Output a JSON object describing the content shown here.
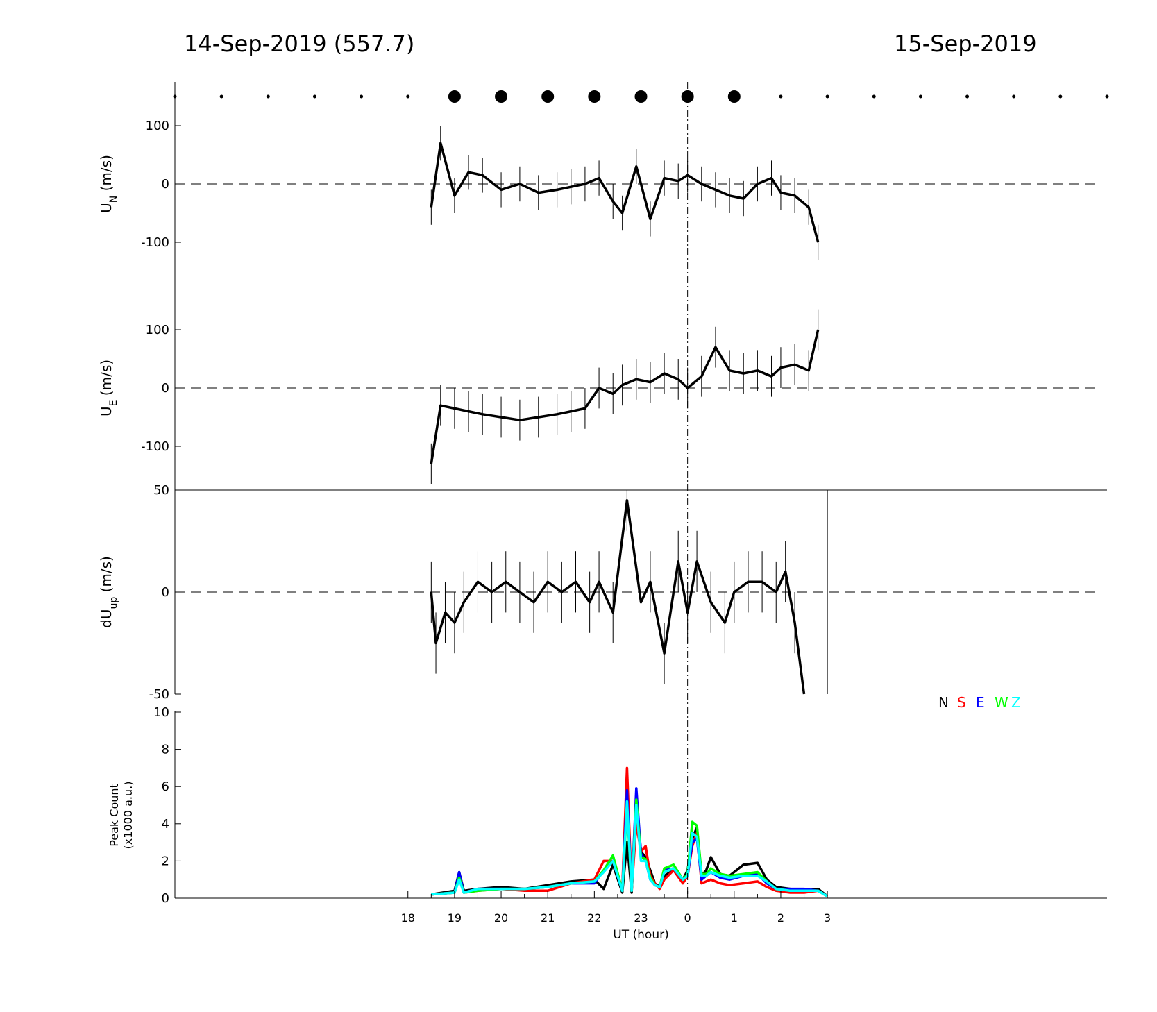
{
  "titles": {
    "left": "14-Sep-2019 (557.7)",
    "right": "15-Sep-2019"
  },
  "chart_data": [
    {
      "type": "line",
      "panel": "un",
      "ylabel_main": "U",
      "ylabel_sub": "N",
      "ylabel_unit": " (m/s)",
      "ylim": [
        -175,
        175
      ],
      "yticks": [
        -100,
        0,
        100
      ],
      "tick_labels": [
        "-100",
        "0",
        "100"
      ],
      "x_unit": "UT hour relative to 00 UT 15-Sep-2019",
      "x": [
        -5.5,
        -5.3,
        -5.0,
        -4.7,
        -4.4,
        -4.0,
        -3.6,
        -3.2,
        -2.8,
        -2.5,
        -2.2,
        -1.9,
        -1.6,
        -1.4,
        -1.1,
        -0.8,
        -0.5,
        -0.2,
        0.0,
        0.3,
        0.6,
        0.9,
        1.2,
        1.5,
        1.8,
        2.0,
        2.3,
        2.6,
        2.8
      ],
      "y": [
        -40,
        70,
        -20,
        20,
        15,
        -10,
        0,
        -15,
        -10,
        -5,
        0,
        10,
        -30,
        -50,
        30,
        -60,
        10,
        5,
        15,
        0,
        -10,
        -20,
        -25,
        0,
        10,
        -15,
        -20,
        -40,
        -100
      ],
      "error_bar": 30,
      "zero_line": true,
      "markers": {
        "x": [
          -11,
          -10,
          -9,
          -8,
          -7,
          -6,
          -5,
          -4,
          -3,
          -2,
          -1,
          0,
          1,
          2,
          3,
          4,
          5,
          6,
          7,
          8,
          9
        ],
        "large": [
          -5,
          -4,
          -3,
          -2,
          -1,
          0,
          1
        ]
      }
    },
    {
      "type": "line",
      "panel": "ue",
      "ylabel_main": "U",
      "ylabel_sub": "E",
      "ylabel_unit": " (m/s)",
      "ylim": [
        -175,
        175
      ],
      "yticks": [
        -100,
        0,
        100
      ],
      "tick_labels": [
        "-100",
        "0",
        "100"
      ],
      "x": [
        -5.5,
        -5.3,
        -5.0,
        -4.7,
        -4.4,
        -4.0,
        -3.6,
        -3.2,
        -2.8,
        -2.5,
        -2.2,
        -1.9,
        -1.6,
        -1.4,
        -1.1,
        -0.8,
        -0.5,
        -0.2,
        0.0,
        0.3,
        0.6,
        0.9,
        1.2,
        1.5,
        1.8,
        2.0,
        2.3,
        2.6,
        2.8
      ],
      "y": [
        -130,
        -30,
        -35,
        -40,
        -45,
        -50,
        -55,
        -50,
        -45,
        -40,
        -35,
        0,
        -10,
        5,
        15,
        10,
        25,
        15,
        0,
        20,
        70,
        30,
        25,
        30,
        20,
        35,
        40,
        30,
        100
      ],
      "error_bar": 35,
      "zero_line": true
    },
    {
      "type": "line",
      "panel": "duup",
      "ylabel_main": "dU",
      "ylabel_sub": "up",
      "ylabel_unit": " (m/s)",
      "ylim": [
        -50,
        50
      ],
      "yticks": [
        -50,
        0,
        50
      ],
      "tick_labels": [
        "-50",
        "0",
        "50"
      ],
      "x": [
        -5.5,
        -5.4,
        -5.2,
        -5.0,
        -4.8,
        -4.5,
        -4.2,
        -3.9,
        -3.6,
        -3.3,
        -3.0,
        -2.7,
        -2.4,
        -2.1,
        -1.9,
        -1.6,
        -1.3,
        -1.0,
        -0.8,
        -0.5,
        -0.2,
        0.0,
        0.2,
        0.5,
        0.8,
        1.0,
        1.3,
        1.6,
        1.9,
        2.1,
        2.3,
        2.5
      ],
      "y": [
        0,
        -25,
        -10,
        -15,
        -5,
        5,
        0,
        5,
        0,
        -5,
        5,
        0,
        5,
        -5,
        5,
        -10,
        45,
        -5,
        5,
        -30,
        15,
        -10,
        15,
        -5,
        -15,
        0,
        5,
        5,
        0,
        10,
        -15,
        -50
      ],
      "error_bar": 15,
      "zero_line": true,
      "vertical_line_x": 3.0
    },
    {
      "type": "line",
      "panel": "peak",
      "ylabel_line1": "Peak Count",
      "ylabel_line2": "(x1000 a.u.)",
      "ylim": [
        0,
        10
      ],
      "yticks": [
        0,
        2,
        4,
        6,
        8,
        10
      ],
      "tick_labels": [
        "0",
        "2",
        "4",
        "6",
        "8",
        "10"
      ],
      "x": [
        -5.5,
        -5.0,
        -4.9,
        -4.8,
        -4.5,
        -4.0,
        -3.5,
        -3.0,
        -2.5,
        -2.0,
        -1.8,
        -1.6,
        -1.4,
        -1.3,
        -1.2,
        -1.1,
        -1.0,
        -0.9,
        -0.8,
        -0.7,
        -0.6,
        -0.5,
        -0.3,
        -0.1,
        0.0,
        0.1,
        0.2,
        0.3,
        0.4,
        0.5,
        0.7,
        0.9,
        1.2,
        1.5,
        1.7,
        1.9,
        2.2,
        2.5,
        2.8,
        3.0
      ],
      "series": [
        {
          "name": "N",
          "color": "#000000",
          "values": [
            0.2,
            0.4,
            1.4,
            0.4,
            0.5,
            0.6,
            0.5,
            0.7,
            0.9,
            1.0,
            0.5,
            1.8,
            0.3,
            3.0,
            0.3,
            5.0,
            2.5,
            2.2,
            1.5,
            0.8,
            0.6,
            1.2,
            1.5,
            1.0,
            1.5,
            3.2,
            3.8,
            1.2,
            1.5,
            2.2,
            1.3,
            1.2,
            1.8,
            1.9,
            1.0,
            0.6,
            0.5,
            0.4,
            0.5,
            0.1
          ]
        },
        {
          "name": "S",
          "color": "#ff0000",
          "values": [
            0.2,
            0.3,
            1.2,
            0.3,
            0.4,
            0.5,
            0.4,
            0.4,
            0.8,
            1.0,
            2.0,
            2.0,
            0.5,
            7.0,
            0.4,
            4.0,
            2.5,
            2.8,
            1.2,
            0.8,
            0.5,
            1.0,
            1.5,
            0.8,
            1.2,
            2.8,
            3.5,
            0.8,
            0.9,
            1.0,
            0.8,
            0.7,
            0.8,
            0.9,
            0.6,
            0.4,
            0.3,
            0.3,
            0.4,
            0.1
          ]
        },
        {
          "name": "E",
          "color": "#0000ff",
          "values": [
            0.2,
            0.3,
            1.4,
            0.3,
            0.5,
            0.5,
            0.5,
            0.6,
            0.8,
            0.8,
            1.5,
            2.0,
            0.4,
            5.8,
            0.4,
            5.9,
            2.4,
            2.0,
            1.0,
            0.7,
            0.6,
            1.5,
            1.6,
            1.0,
            1.2,
            3.0,
            3.2,
            1.0,
            1.2,
            1.4,
            1.1,
            1.0,
            1.2,
            1.3,
            0.8,
            0.5,
            0.5,
            0.5,
            0.4,
            0.1
          ]
        },
        {
          "name": "W",
          "color": "#00ff00",
          "values": [
            0.2,
            0.3,
            1.1,
            0.3,
            0.4,
            0.5,
            0.5,
            0.6,
            0.8,
            0.9,
            1.5,
            2.3,
            0.4,
            5.0,
            0.4,
            5.3,
            2.2,
            2.1,
            1.1,
            0.7,
            0.6,
            1.6,
            1.8,
            1.0,
            1.3,
            4.1,
            3.9,
            1.3,
            1.3,
            1.6,
            1.3,
            1.2,
            1.3,
            1.4,
            0.9,
            0.5,
            0.4,
            0.4,
            0.4,
            0.1
          ]
        },
        {
          "name": "Z",
          "color": "#00ffff",
          "values": [
            0.2,
            0.3,
            1.0,
            0.3,
            0.5,
            0.5,
            0.5,
            0.6,
            0.8,
            0.9,
            1.4,
            2.0,
            0.4,
            5.2,
            0.4,
            5.0,
            2.0,
            2.0,
            1.0,
            0.7,
            0.6,
            1.4,
            1.6,
            1.0,
            1.2,
            3.5,
            3.3,
            1.2,
            1.2,
            1.4,
            1.2,
            1.1,
            1.2,
            1.2,
            0.9,
            0.5,
            0.4,
            0.4,
            0.4,
            0.1
          ]
        }
      ],
      "legend": [
        "N",
        "S",
        "E",
        "W",
        "Z"
      ],
      "legend_location": "top-right"
    }
  ],
  "x_axis": {
    "label": "UT (hour)",
    "range": [
      -11,
      9
    ],
    "tick_values": [
      -6,
      -5,
      -4,
      -3,
      -2,
      -1,
      0,
      1,
      2,
      3
    ],
    "tick_labels": [
      "18",
      "19",
      "20",
      "21",
      "22",
      "23",
      "0",
      "1",
      "2",
      "3"
    ],
    "reference_line_x": 0
  }
}
